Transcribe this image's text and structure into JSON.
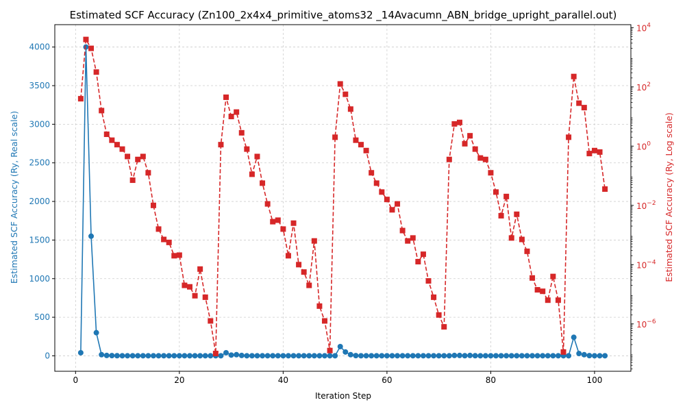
{
  "chart_data": {
    "type": "line",
    "title": "Estimated SCF Accuracy (Zn100_2x4x4_primitive_atoms32 _14Avacumn_ABN_bridge_upright_parallel.out)",
    "xlabel": "Iteration Step",
    "ylabel_left": "Estimated SCF Accuracy (Ry, Real scale)",
    "ylabel_right": "Estimated SCF Accuracy (Ry, Log scale)",
    "xlim": [
      -4,
      107
    ],
    "ylim_left": [
      -200,
      4290
    ],
    "ylim_right_log10": [
      -7.6,
      4.1
    ],
    "x_ticks": [
      0,
      20,
      40,
      60,
      80,
      100
    ],
    "x_tick_labels": [
      "0",
      "20",
      "40",
      "60",
      "80",
      "100"
    ],
    "y_left_ticks": [
      0,
      500,
      1000,
      1500,
      2000,
      2500,
      3000,
      3500,
      4000
    ],
    "y_left_tick_labels": [
      "0",
      "500",
      "1000",
      "1500",
      "2000",
      "2500",
      "3000",
      "3500",
      "4000"
    ],
    "y_right_ticks_log10": [
      -6,
      -4,
      -2,
      0,
      2,
      4
    ],
    "y_right_tick_labels": [
      {
        "base": "10",
        "exp": "−6"
      },
      {
        "base": "10",
        "exp": "−4"
      },
      {
        "base": "10",
        "exp": "−2"
      },
      {
        "base": "10",
        "exp": "0"
      },
      {
        "base": "10",
        "exp": "2"
      },
      {
        "base": "10",
        "exp": "4"
      }
    ],
    "grid": true,
    "colors": {
      "left": "#1f77b4",
      "right": "#d62728",
      "grid": "#cccccc"
    },
    "x": [
      1,
      2,
      3,
      4,
      5,
      6,
      7,
      8,
      9,
      10,
      11,
      12,
      13,
      14,
      15,
      16,
      17,
      18,
      19,
      20,
      21,
      22,
      23,
      24,
      25,
      26,
      27,
      28,
      29,
      30,
      31,
      32,
      33,
      34,
      35,
      36,
      37,
      38,
      39,
      40,
      41,
      42,
      43,
      44,
      45,
      46,
      47,
      48,
      49,
      50,
      51,
      52,
      53,
      54,
      55,
      56,
      57,
      58,
      59,
      60,
      61,
      62,
      63,
      64,
      65,
      66,
      67,
      68,
      69,
      70,
      71,
      72,
      73,
      74,
      75,
      76,
      77,
      78,
      79,
      80,
      81,
      82,
      83,
      84,
      85,
      86,
      87,
      88,
      89,
      90,
      91,
      92,
      93,
      94,
      95,
      96,
      97,
      98,
      99,
      100,
      101,
      102
    ],
    "series": [
      {
        "axis": "left",
        "marker": "circle",
        "line": "solid",
        "values": [
          40,
          4000,
          1550,
          300,
          15,
          5,
          3,
          2,
          1,
          1,
          1,
          1,
          1,
          1,
          1,
          1,
          1,
          1,
          1,
          1,
          1,
          1,
          1,
          1,
          1,
          1,
          1,
          1,
          40,
          10,
          15,
          5,
          1,
          1,
          1,
          1,
          1,
          1,
          1,
          1,
          1,
          1,
          1,
          1,
          1,
          1,
          1,
          1,
          1,
          1,
          120,
          50,
          15,
          3,
          1,
          1,
          1,
          1,
          1,
          1,
          1,
          1,
          1,
          1,
          1,
          1,
          1,
          1,
          1,
          1,
          1,
          1,
          5,
          5,
          2,
          5,
          2,
          1,
          1,
          1,
          1,
          1,
          1,
          1,
          1,
          1,
          1,
          1,
          1,
          1,
          1,
          1,
          1,
          1,
          1,
          240,
          30,
          15,
          3,
          1,
          1,
          1
        ]
      },
      {
        "axis": "right",
        "marker": "square",
        "line": "dashed",
        "log10_values": [
          1.6,
          3.6,
          3.3,
          2.5,
          1.2,
          0.4,
          0.2,
          0.05,
          -0.1,
          -0.35,
          -1.15,
          -0.45,
          -0.35,
          -0.9,
          -2.0,
          -2.8,
          -3.15,
          -3.25,
          -3.7,
          -3.68,
          -4.7,
          -4.75,
          -5.05,
          -4.15,
          -5.1,
          -5.9,
          -7.0,
          0.05,
          1.65,
          1.0,
          1.15,
          0.45,
          -0.1,
          -0.95,
          -0.35,
          -1.25,
          -1.95,
          -2.55,
          -2.5,
          -2.8,
          -3.7,
          -2.6,
          -4.0,
          -4.25,
          -4.7,
          -3.2,
          -5.4,
          -5.9,
          -6.9,
          0.3,
          2.1,
          1.75,
          1.25,
          0.2,
          0.05,
          -0.15,
          -0.9,
          -1.25,
          -1.55,
          -1.8,
          -2.15,
          -1.95,
          -2.85,
          -3.2,
          -3.1,
          -3.9,
          -3.65,
          -4.55,
          -5.1,
          -5.7,
          -6.1,
          -0.45,
          0.75,
          0.8,
          0.08,
          0.35,
          -0.1,
          -0.4,
          -0.45,
          -0.9,
          -1.55,
          -2.35,
          -1.7,
          -3.1,
          -2.3,
          -3.15,
          -3.55,
          -4.45,
          -4.85,
          -4.9,
          -5.2,
          -4.4,
          -5.2,
          -6.95,
          0.3,
          2.35,
          1.45,
          1.3,
          -0.25,
          -0.15,
          -0.2,
          -1.45
        ]
      }
    ]
  }
}
